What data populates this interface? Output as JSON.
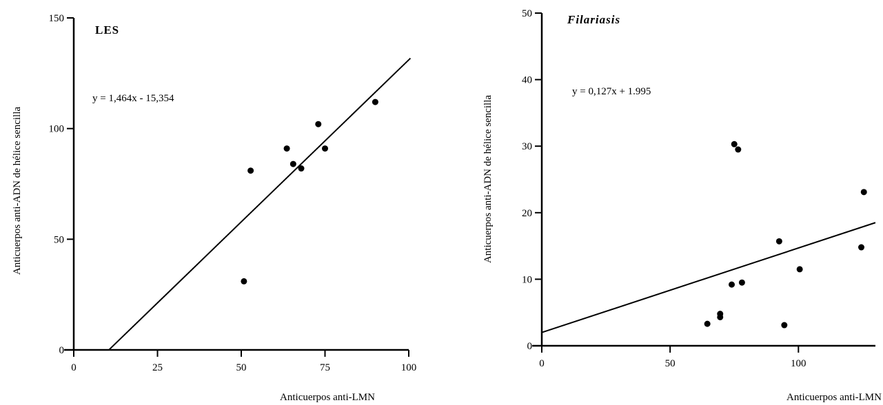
{
  "chart_data": [
    {
      "type": "scatter",
      "title": "LES",
      "equation": "y = 1,464x - 15,354",
      "xlabel": "Anticuerpos anti-LMN",
      "ylabel": "Anticuerpos anti-ADN de hélice sencilla",
      "xlim": [
        0,
        100
      ],
      "ylim": [
        0,
        150
      ],
      "x_ticks": [
        0,
        25,
        50,
        75,
        100
      ],
      "y_ticks": [
        0,
        50,
        100,
        150
      ],
      "x_tick_labels": [
        "0",
        "25",
        "50",
        "75",
        "100"
      ],
      "y_tick_labels": [
        "0",
        "50",
        "100",
        "150"
      ],
      "fit": {
        "slope": 1.464,
        "intercept": -15.354,
        "x_range": [
          10.5,
          100.5
        ]
      },
      "points": [
        {
          "x": 50.8,
          "y": 31
        },
        {
          "x": 52.8,
          "y": 81
        },
        {
          "x": 63.6,
          "y": 91
        },
        {
          "x": 65.5,
          "y": 84
        },
        {
          "x": 67.9,
          "y": 82
        },
        {
          "x": 73.0,
          "y": 102
        },
        {
          "x": 75.0,
          "y": 91
        },
        {
          "x": 90.0,
          "y": 112
        }
      ]
    },
    {
      "type": "scatter",
      "title": "Filariasis",
      "equation": "y = 0,127x + 1.995",
      "xlabel": "Anticuerpos anti-LMN",
      "ylabel": "Anticuerpos anti-ADN de hélice sencilla",
      "xlim": [
        0,
        130
      ],
      "ylim": [
        0,
        50
      ],
      "x_ticks": [
        0,
        50,
        100
      ],
      "y_ticks": [
        0,
        10,
        20,
        30,
        40,
        50
      ],
      "x_tick_labels": [
        "0",
        "50",
        "100"
      ],
      "y_tick_labels": [
        "0",
        "10",
        "20",
        "30",
        "40",
        "50"
      ],
      "fit": {
        "slope": 0.127,
        "intercept": 1.995,
        "x_range": [
          0,
          130
        ]
      },
      "points": [
        {
          "x": 64.5,
          "y": 3.3
        },
        {
          "x": 69.5,
          "y": 4.3
        },
        {
          "x": 69.5,
          "y": 4.8
        },
        {
          "x": 74.0,
          "y": 9.2
        },
        {
          "x": 75.0,
          "y": 30.3
        },
        {
          "x": 76.5,
          "y": 29.5
        },
        {
          "x": 78.0,
          "y": 9.5
        },
        {
          "x": 92.5,
          "y": 15.7
        },
        {
          "x": 94.5,
          "y": 3.1
        },
        {
          "x": 100.5,
          "y": 11.5
        },
        {
          "x": 124.5,
          "y": 14.8
        },
        {
          "x": 125.5,
          "y": 23.1
        }
      ]
    }
  ]
}
